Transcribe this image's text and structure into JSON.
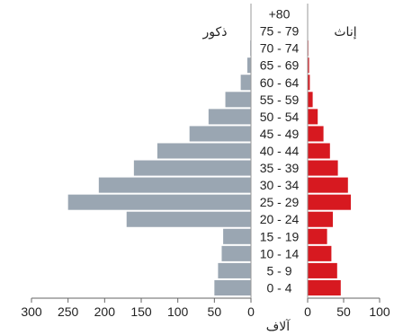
{
  "chart_data": {
    "type": "bar",
    "orientation": "horizontal",
    "layout": "population-pyramid",
    "categories": [
      "0 - 4",
      "5 - 9",
      "10 - 14",
      "15 - 19",
      "20 - 24",
      "25 - 29",
      "30 - 34",
      "35 - 39",
      "40 - 44",
      "45 - 49",
      "50 - 54",
      "55 - 59",
      "60 - 64",
      "65 - 69",
      "70 - 74",
      "75 - 79",
      "+80"
    ],
    "series": [
      {
        "name": "ذكور",
        "side": "left",
        "color": "#9aa6b2",
        "values": [
          50,
          45,
          40,
          38,
          170,
          250,
          208,
          160,
          128,
          84,
          58,
          35,
          14,
          5,
          1,
          0.5,
          0.5
        ]
      },
      {
        "name": "إناث",
        "side": "right",
        "color": "#d71920",
        "values": [
          46,
          41,
          33,
          27,
          35,
          60,
          56,
          42,
          31,
          22,
          14,
          7,
          3,
          2,
          1,
          0.5,
          0.5
        ]
      }
    ],
    "left_axis": {
      "range": [
        0,
        300
      ],
      "ticks": [
        "300",
        "250",
        "200",
        "150",
        "100",
        "50",
        "0"
      ]
    },
    "right_axis": {
      "range": [
        0,
        100
      ],
      "ticks": [
        "0",
        "50",
        "100"
      ]
    },
    "xlabel": "آلاف",
    "grid": false
  }
}
